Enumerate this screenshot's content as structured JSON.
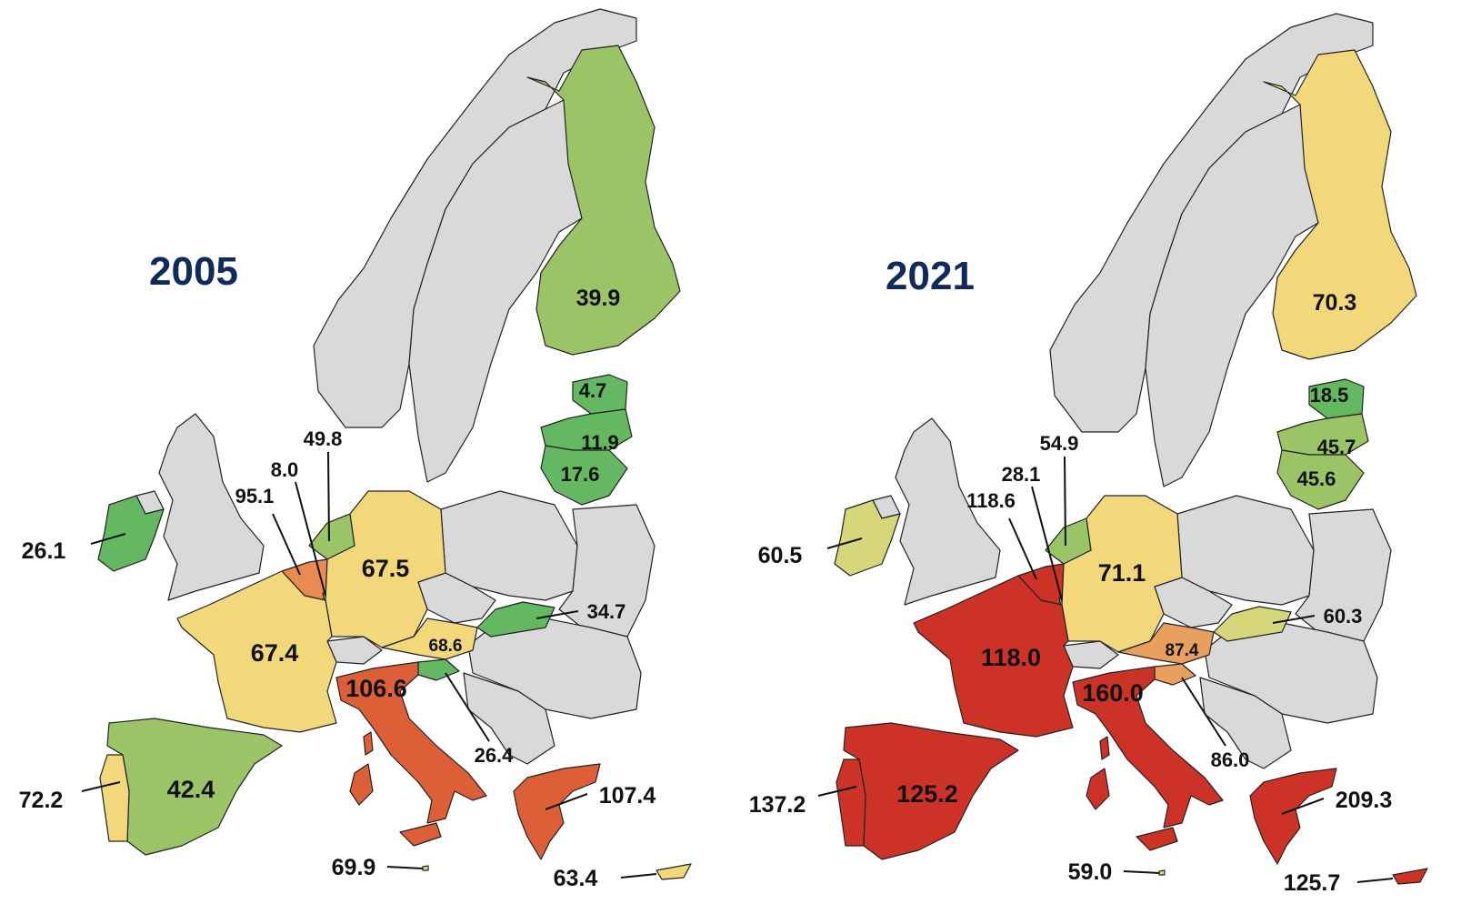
{
  "colors": {
    "grey": "#d9d9d9",
    "dark_green": "#63b861",
    "light_green": "#9bc467",
    "olive": "#d6d77a",
    "yellow": "#f2d77b",
    "light_orange": "#e9a05e",
    "orange": "#dd5f38",
    "red": "#cc3326"
  },
  "maps": [
    {
      "year": "2005",
      "countries": {
        "finland": {
          "value": "39.9",
          "color": "#9bc467"
        },
        "estonia": {
          "value": "4.7",
          "color": "#63b861"
        },
        "latvia": {
          "value": "11.9",
          "color": "#63b861"
        },
        "lithuania": {
          "value": "17.6",
          "color": "#63b861"
        },
        "netherlands": {
          "value": "49.8",
          "color": "#9bc467"
        },
        "luxembourg": {
          "value": "8.0",
          "color": "#63b861"
        },
        "belgium": {
          "value": "95.1",
          "color": "#e98a50"
        },
        "ireland": {
          "value": "26.1",
          "color": "#63b861"
        },
        "germany": {
          "value": "67.5",
          "color": "#f2d77b"
        },
        "france": {
          "value": "67.4",
          "color": "#f2d77b"
        },
        "austria": {
          "value": "68.6",
          "color": "#f2d77b"
        },
        "slovakia": {
          "value": "34.7",
          "color": "#63b861"
        },
        "slovenia": {
          "value": "26.4",
          "color": "#63b861"
        },
        "italy": {
          "value": "106.6",
          "color": "#dd5f38"
        },
        "spain": {
          "value": "42.4",
          "color": "#9bc467"
        },
        "portugal": {
          "value": "72.2",
          "color": "#f2d77b"
        },
        "greece": {
          "value": "107.4",
          "color": "#dd5f38"
        },
        "malta": {
          "value": "69.9",
          "color": "#f2d77b"
        },
        "cyprus": {
          "value": "63.4",
          "color": "#f2d77b"
        }
      }
    },
    {
      "year": "2021",
      "countries": {
        "finland": {
          "value": "70.3",
          "color": "#f2d77b"
        },
        "estonia": {
          "value": "18.5",
          "color": "#63b861"
        },
        "latvia": {
          "value": "45.7",
          "color": "#9bc467"
        },
        "lithuania": {
          "value": "45.6",
          "color": "#9bc467"
        },
        "netherlands": {
          "value": "54.9",
          "color": "#9bc467"
        },
        "luxembourg": {
          "value": "28.1",
          "color": "#63b861"
        },
        "belgium": {
          "value": "118.6",
          "color": "#cc3326"
        },
        "ireland": {
          "value": "60.5",
          "color": "#d6d77a"
        },
        "germany": {
          "value": "71.1",
          "color": "#f2d77b"
        },
        "france": {
          "value": "118.0",
          "color": "#cc3326"
        },
        "austria": {
          "value": "87.4",
          "color": "#e9a05e"
        },
        "slovakia": {
          "value": "60.3",
          "color": "#d6d77a"
        },
        "slovenia": {
          "value": "86.0",
          "color": "#e9a05e"
        },
        "italy": {
          "value": "160.0",
          "color": "#cc3326"
        },
        "spain": {
          "value": "125.2",
          "color": "#cc3326"
        },
        "portugal": {
          "value": "137.2",
          "color": "#cc3326"
        },
        "greece": {
          "value": "209.3",
          "color": "#cc3326"
        },
        "malta": {
          "value": "59.0",
          "color": "#d6d77a"
        },
        "cyprus": {
          "value": "125.7",
          "color": "#cc3326"
        }
      }
    }
  ]
}
